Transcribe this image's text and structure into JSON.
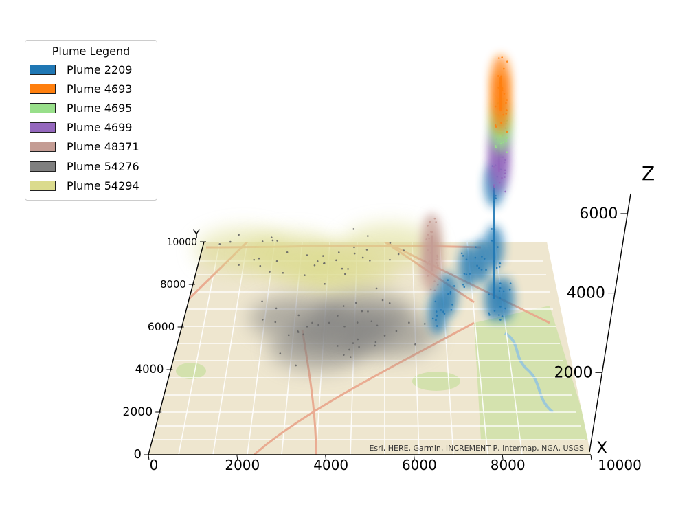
{
  "chart_data": {
    "type": "scatter",
    "projection": "3d",
    "title": "",
    "legend": {
      "title": "Plume Legend",
      "placement": "top-left",
      "entries": [
        {
          "name": "Plume 2209",
          "color": "#1f77b4"
        },
        {
          "name": "Plume 4693",
          "color": "#ff7f0e"
        },
        {
          "name": "Plume 4695",
          "color": "#98df8a"
        },
        {
          "name": "Plume 4699",
          "color": "#9467bd"
        },
        {
          "name": "Plume 48371",
          "color": "#c49c94"
        },
        {
          "name": "Plume 54276",
          "color": "#7f7f7f"
        },
        {
          "name": "Plume 54294",
          "color": "#dbdb8d"
        }
      ]
    },
    "axes": {
      "x": {
        "label": "X",
        "lim": [
          0,
          10000
        ],
        "ticks": [
          0,
          2000,
          4000,
          6000,
          8000,
          10000
        ]
      },
      "y": {
        "label": "Y",
        "lim": [
          0,
          10000
        ],
        "ticks": [
          0,
          2000,
          4000,
          6000,
          8000,
          10000
        ]
      },
      "z": {
        "label": "Z",
        "lim": [
          0,
          6500
        ],
        "ticks": [
          2000,
          4000,
          6000
        ]
      }
    },
    "basemap_attribution": "Esri, HERE, Garmin, INCREMENT P, Intermap, NGA, USGS",
    "series": [
      {
        "name": "Plume 2209",
        "points": [
          [
            8250,
            7300,
            0
          ],
          [
            8250,
            7300,
            1500
          ],
          [
            8250,
            7300,
            3300
          ],
          [
            7600,
            8200,
            400
          ],
          [
            7000,
            7200,
            200
          ],
          [
            6700,
            6500,
            100
          ],
          [
            8500,
            6800,
            300
          ],
          [
            8000,
            8800,
            200
          ]
        ]
      },
      {
        "name": "Plume 4693",
        "points": [
          [
            8450,
            7600,
            5300
          ],
          [
            8450,
            7600,
            5800
          ],
          [
            8450,
            7600,
            6300
          ]
        ]
      },
      {
        "name": "Plume 4695",
        "points": [
          [
            8450,
            7600,
            4700
          ],
          [
            8450,
            7600,
            5000
          ]
        ]
      },
      {
        "name": "Plume 4699",
        "points": [
          [
            8400,
            7500,
            3600
          ],
          [
            8400,
            7500,
            4000
          ],
          [
            8400,
            7500,
            4400
          ]
        ]
      },
      {
        "name": "Plume 48371",
        "points": [
          [
            6600,
            8600,
            0
          ],
          [
            6600,
            8600,
            500
          ],
          [
            6600,
            8600,
            1100
          ]
        ]
      },
      {
        "name": "Plume 54276",
        "points": [
          [
            4200,
            5800,
            0
          ],
          [
            3600,
            5000,
            0
          ],
          [
            4800,
            6600,
            0
          ],
          [
            3000,
            6400,
            0
          ],
          [
            5400,
            5600,
            0
          ]
        ]
      },
      {
        "name": "Plume 54294",
        "points": [
          [
            1200,
            9600,
            0
          ],
          [
            2600,
            9400,
            0
          ],
          [
            4200,
            8600,
            0
          ],
          [
            5400,
            9800,
            0
          ],
          [
            3400,
            8900,
            0
          ]
        ]
      }
    ]
  }
}
